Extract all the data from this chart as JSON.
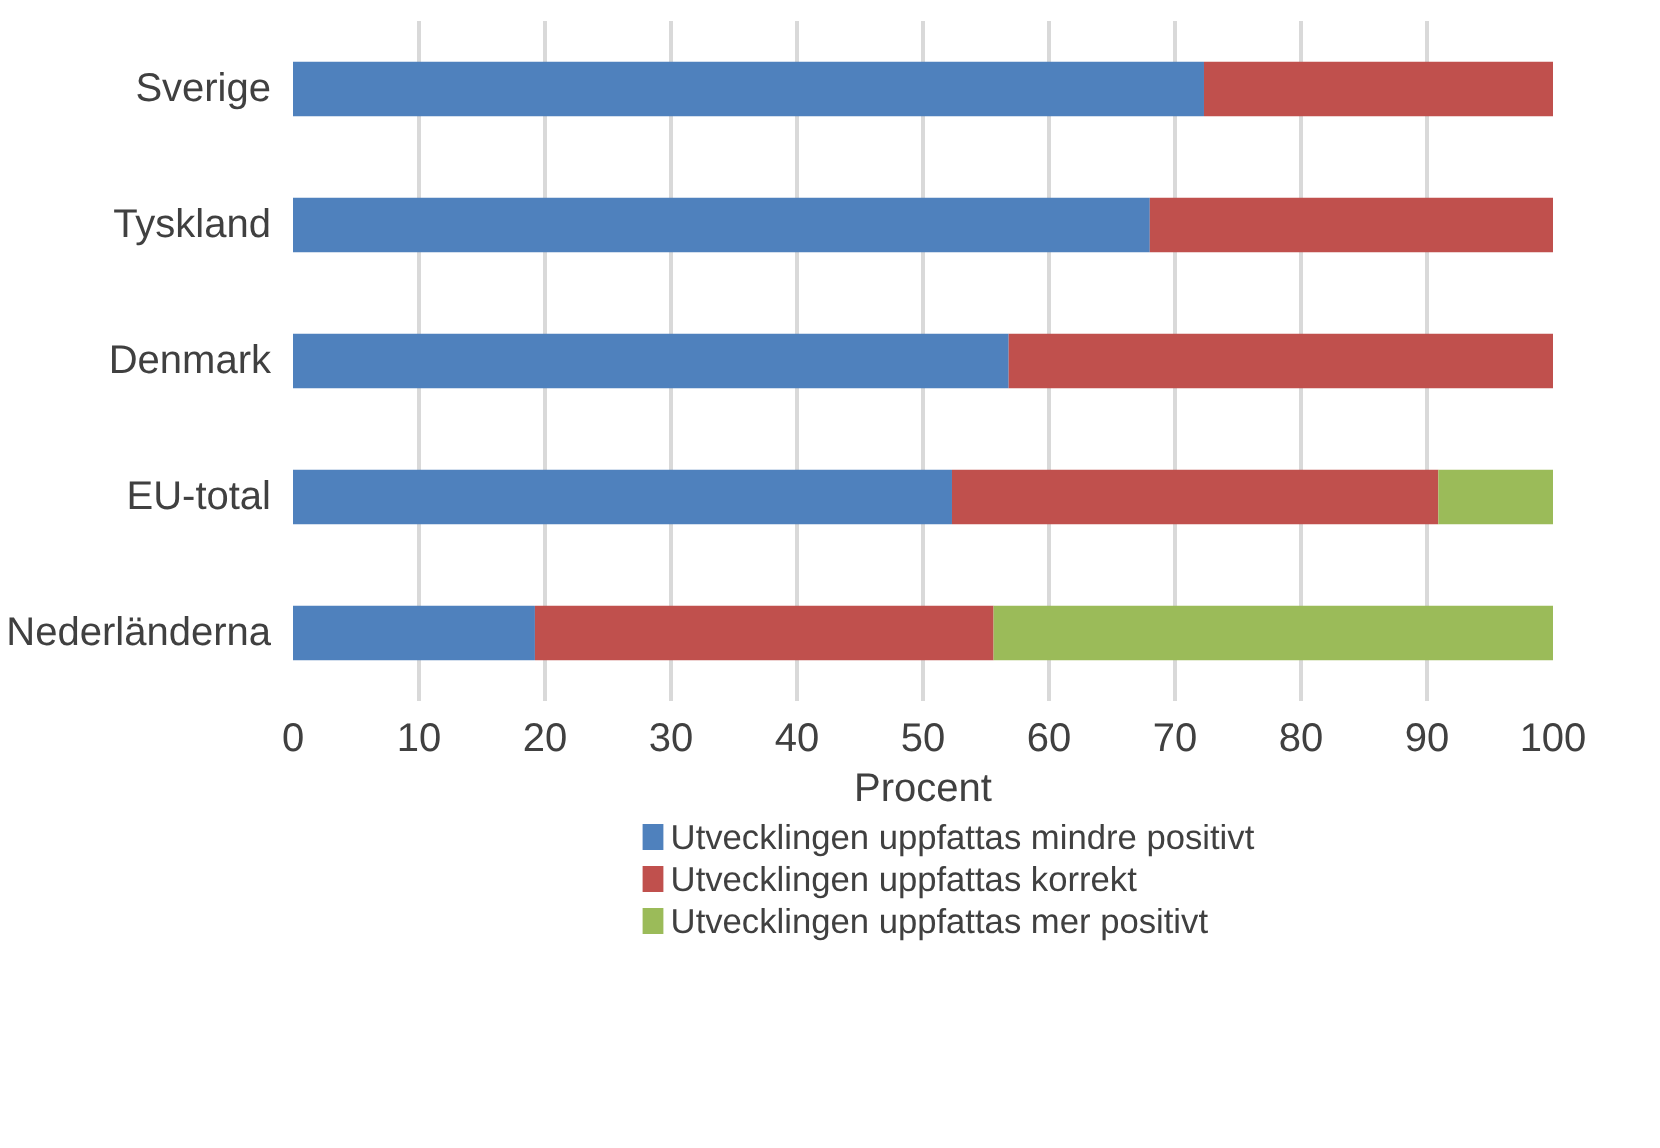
{
  "chart_data": {
    "type": "bar",
    "orientation": "horizontal",
    "stacked": true,
    "xlabel": "Procent",
    "categories": [
      "Sverige",
      "Tyskland",
      "Denmark",
      "EU-total",
      "Nederländerna"
    ],
    "series": [
      {
        "name": "Utvecklingen uppfattas mindre positivt",
        "color": "#4f81bd",
        "values": [
          72.3,
          68.0,
          56.8,
          52.3,
          19.2
        ]
      },
      {
        "name": "Utvecklingen uppfattas korrekt",
        "color": "#c0504d",
        "values": [
          27.7,
          32.0,
          43.2,
          38.6,
          36.4
        ]
      },
      {
        "name": "Utvecklingen uppfattas mer positivt",
        "color": "#9bbb59",
        "values": [
          null,
          null,
          null,
          9.1,
          44.4
        ]
      }
    ],
    "xlim": [
      0,
      100
    ],
    "xticks": [
      0,
      10,
      20,
      30,
      40,
      50,
      60,
      70,
      80,
      90,
      100
    ],
    "grid": "x",
    "legend": "bottom"
  }
}
